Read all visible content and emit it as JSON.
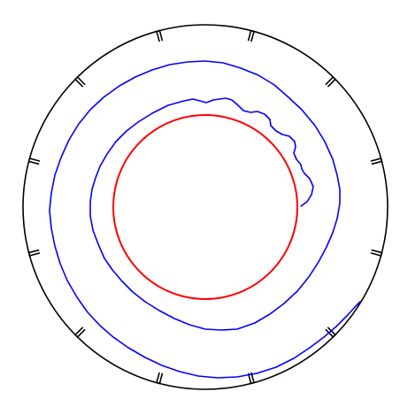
{
  "figure": {
    "background": "#ffffff",
    "colors": {
      "outer_ring": "#000000",
      "spiral": "#0000ff",
      "inner_circle": "#ff0000"
    },
    "outer_ring": {
      "segment_count": 12,
      "style": "notched ring of 12 arc segments with radial end ticks"
    },
    "spiral": {
      "turns": 1.5,
      "style": "outward spiral path with a wavy lobed section near its inner start"
    },
    "inner_circle": {
      "shape": "circle"
    }
  }
}
